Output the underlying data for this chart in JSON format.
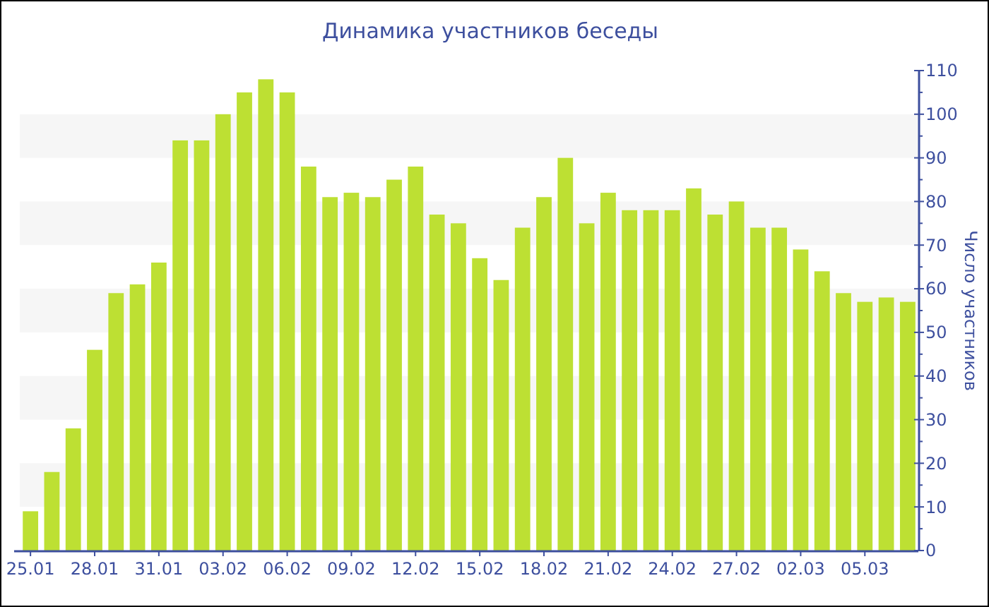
{
  "chart_data": {
    "type": "bar",
    "title": "Динамика участников беседы",
    "ylabel": "Число участников",
    "categories": [
      "25.01",
      null,
      null,
      "28.01",
      null,
      null,
      "31.01",
      null,
      null,
      "03.02",
      null,
      null,
      "06.02",
      null,
      null,
      "09.02",
      null,
      null,
      "12.02",
      null,
      null,
      "15.02",
      null,
      null,
      "18.02",
      null,
      null,
      "21.02",
      null,
      null,
      "24.02",
      null,
      null,
      "27.02",
      null,
      null,
      "02.03",
      null,
      null,
      "05.03",
      null,
      null
    ],
    "values": [
      9,
      18,
      28,
      46,
      59,
      61,
      66,
      94,
      94,
      100,
      105,
      108,
      105,
      88,
      81,
      82,
      81,
      85,
      88,
      77,
      75,
      67,
      62,
      74,
      81,
      90,
      75,
      82,
      78,
      78,
      78,
      83,
      77,
      80,
      74,
      74,
      69,
      64,
      59,
      57,
      58,
      57
    ],
    "color": "#bde033",
    "ylim": [
      0,
      110
    ],
    "yticks": [
      0,
      {
        "value": 5,
        "label": null
      },
      10,
      {
        "value": 15,
        "label": null
      },
      20,
      {
        "value": 25,
        "label": null
      },
      30,
      {
        "value": 35,
        "label": null
      },
      40,
      {
        "value": 45,
        "label": null
      },
      50,
      {
        "value": 55,
        "label": null
      },
      60,
      {
        "value": 65,
        "label": null
      },
      70,
      {
        "value": 75,
        "label": null
      },
      80,
      {
        "value": 85,
        "label": null
      },
      90,
      {
        "value": 95,
        "label": null
      },
      100,
      {
        "value": 105,
        "label": null
      },
      110
    ],
    "bands": [
      {
        "axis": "y",
        "from": 10,
        "to": 20,
        "color": "#f6f6f6"
      },
      {
        "axis": "y",
        "from": 30,
        "to": 40,
        "color": "#f6f6f6"
      },
      {
        "axis": "y",
        "from": 50,
        "to": 60,
        "color": "#f6f6f6"
      },
      {
        "axis": "y",
        "from": 70,
        "to": 80,
        "color": "#f6f6f6"
      },
      {
        "axis": "y",
        "from": 90,
        "to": 100,
        "color": "#f6f6f6"
      }
    ]
  }
}
